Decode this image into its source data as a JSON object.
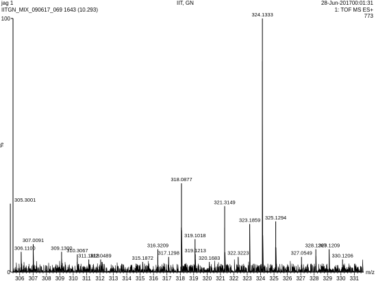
{
  "header": {
    "sample_name": "jag 1",
    "instrument_site": "IIT, GN",
    "datetime": "28-Jun-201700:01:31",
    "file_info": "IITGN_MIX_090617_069 1643 (10.293)",
    "scan_mode": "1: TOF MS ES+",
    "max_intensity": "773"
  },
  "chart_data": {
    "type": "line",
    "title": "",
    "xlabel": "m/z",
    "ylabel": "%",
    "xlim": [
      305.5,
      331.7
    ],
    "ylim": [
      0,
      100
    ],
    "x_ticks": [
      "306",
      "307",
      "308",
      "309",
      "310",
      "311",
      "312",
      "313",
      "314",
      "315",
      "316",
      "317",
      "318",
      "319",
      "320",
      "321",
      "322",
      "323",
      "324",
      "325",
      "326",
      "327",
      "328",
      "329",
      "330",
      "331"
    ],
    "y_ticks": [
      "0",
      "100"
    ],
    "peaks": [
      {
        "mz": 305.3001,
        "intensity": 27,
        "label": "305.3001"
      },
      {
        "mz": 306.11,
        "intensity": 8,
        "label": "306.1100"
      },
      {
        "mz": 307.0091,
        "intensity": 11,
        "label": "307.0091"
      },
      {
        "mz": 309.13,
        "intensity": 8,
        "label": "309.1300"
      },
      {
        "mz": 310.3067,
        "intensity": 7,
        "label": "310.3067"
      },
      {
        "mz": 311.1618,
        "intensity": 5,
        "label": "311.1618"
      },
      {
        "mz": 312.0489,
        "intensity": 5,
        "label": "312.0489"
      },
      {
        "mz": 315.1872,
        "intensity": 4,
        "label": "315.1872"
      },
      {
        "mz": 316.3209,
        "intensity": 9,
        "label": "316.3209"
      },
      {
        "mz": 317.1298,
        "intensity": 6,
        "label": "317.1298"
      },
      {
        "mz": 318.0877,
        "intensity": 35,
        "label": "318.0877"
      },
      {
        "mz": 319.1018,
        "intensity": 13,
        "label": "319.1018"
      },
      {
        "mz": 319.1213,
        "intensity": 7,
        "label": "319.1213"
      },
      {
        "mz": 320.1683,
        "intensity": 4,
        "label": "320.1683"
      },
      {
        "mz": 321.3149,
        "intensity": 26,
        "label": "321.3149"
      },
      {
        "mz": 322.3223,
        "intensity": 6,
        "label": "322.3223"
      },
      {
        "mz": 323.1859,
        "intensity": 19,
        "label": "323.1859"
      },
      {
        "mz": 324.1333,
        "intensity": 100,
        "label": "324.1333"
      },
      {
        "mz": 325.1294,
        "intensity": 20,
        "label": "325.1294"
      },
      {
        "mz": 327.0549,
        "intensity": 6,
        "label": "327.0549"
      },
      {
        "mz": 328.1267,
        "intensity": 9,
        "label": "328.1267"
      },
      {
        "mz": 329.1209,
        "intensity": 9,
        "label": "329.1209"
      },
      {
        "mz": 330.1206,
        "intensity": 5,
        "label": "330.1206"
      }
    ],
    "grid": false,
    "colors": {
      "trace": "#000000",
      "background": "#ffffff"
    }
  }
}
